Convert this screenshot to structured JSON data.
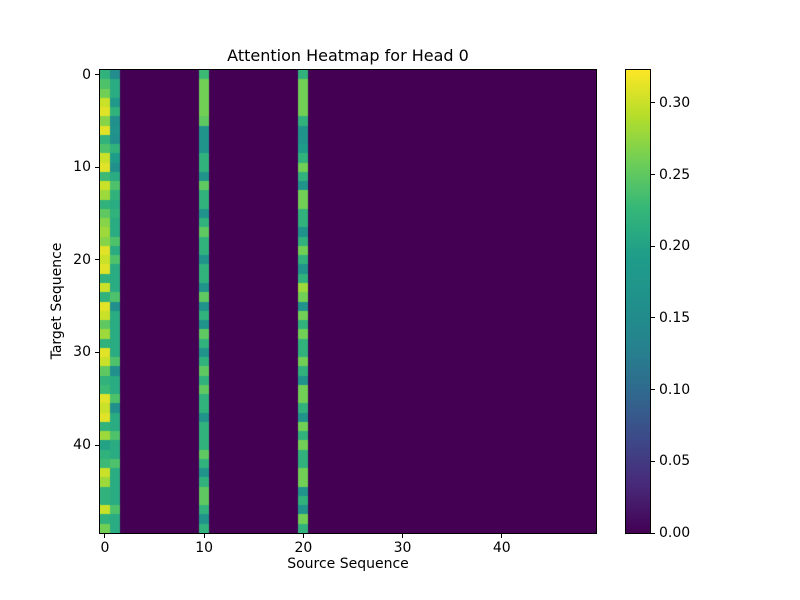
{
  "figure": {
    "background": "#ffffff",
    "spine_color": "#000000"
  },
  "chart_data": {
    "type": "heatmap",
    "title": "Attention Heatmap for Head 0",
    "xlabel": "Source Sequence",
    "ylabel": "Target Sequence",
    "n_rows": 50,
    "n_cols": 50,
    "colormap": "viridis",
    "colormap_stops": [
      "#440154",
      "#482878",
      "#3e4989",
      "#31688e",
      "#26828e",
      "#21918c",
      "#1f9e89",
      "#35b779",
      "#6ece58",
      "#b5de2b",
      "#fde725"
    ],
    "vmin": 0.0,
    "vmax": 0.323,
    "xticks": [
      0,
      10,
      20,
      30,
      40
    ],
    "yticks": [
      0,
      10,
      20,
      30,
      40
    ],
    "colorbar_ticks": [
      {
        "value": 0.0,
        "label": "0.00"
      },
      {
        "value": 0.05,
        "label": "0.05"
      },
      {
        "value": 0.1,
        "label": "0.10"
      },
      {
        "value": 0.15,
        "label": "0.15"
      },
      {
        "value": 0.2,
        "label": "0.20"
      },
      {
        "value": 0.25,
        "label": "0.25"
      },
      {
        "value": 0.3,
        "label": "0.30"
      }
    ],
    "background_value": 0.0,
    "note": "All columns are 0.0 except source columns 0, 1, 10 and 20, which carry per-target-row attention weights listed below.",
    "active_columns": {
      "0": [
        0.22,
        0.24,
        0.26,
        0.3,
        0.31,
        0.27,
        0.31,
        0.22,
        0.24,
        0.3,
        0.31,
        0.23,
        0.3,
        0.28,
        0.22,
        0.25,
        0.27,
        0.28,
        0.27,
        0.31,
        0.3,
        0.31,
        0.22,
        0.3,
        0.22,
        0.31,
        0.3,
        0.25,
        0.28,
        0.22,
        0.31,
        0.3,
        0.25,
        0.22,
        0.23,
        0.31,
        0.3,
        0.31,
        0.22,
        0.28,
        0.2,
        0.22,
        0.23,
        0.3,
        0.28,
        0.22,
        0.22,
        0.3,
        0.22,
        0.26
      ],
      "1": [
        0.15,
        0.21,
        0.21,
        0.18,
        0.22,
        0.16,
        0.17,
        0.16,
        0.22,
        0.19,
        0.16,
        0.21,
        0.24,
        0.22,
        0.21,
        0.22,
        0.21,
        0.21,
        0.24,
        0.21,
        0.24,
        0.21,
        0.21,
        0.21,
        0.24,
        0.16,
        0.21,
        0.21,
        0.21,
        0.21,
        0.21,
        0.24,
        0.16,
        0.21,
        0.21,
        0.24,
        0.16,
        0.21,
        0.21,
        0.24,
        0.21,
        0.21,
        0.24,
        0.21,
        0.21,
        0.21,
        0.21,
        0.24,
        0.21,
        0.21
      ],
      "10": [
        0.23,
        0.26,
        0.26,
        0.26,
        0.26,
        0.25,
        0.17,
        0.17,
        0.17,
        0.22,
        0.22,
        0.17,
        0.25,
        0.22,
        0.22,
        0.17,
        0.22,
        0.25,
        0.22,
        0.22,
        0.17,
        0.22,
        0.22,
        0.17,
        0.25,
        0.17,
        0.22,
        0.17,
        0.25,
        0.22,
        0.17,
        0.22,
        0.25,
        0.22,
        0.25,
        0.22,
        0.22,
        0.17,
        0.22,
        0.22,
        0.22,
        0.25,
        0.22,
        0.17,
        0.22,
        0.25,
        0.25,
        0.22,
        0.17,
        0.22
      ],
      "20": [
        0.22,
        0.26,
        0.26,
        0.26,
        0.26,
        0.22,
        0.17,
        0.17,
        0.19,
        0.22,
        0.26,
        0.22,
        0.17,
        0.26,
        0.26,
        0.22,
        0.22,
        0.17,
        0.22,
        0.26,
        0.22,
        0.17,
        0.22,
        0.28,
        0.26,
        0.17,
        0.26,
        0.22,
        0.26,
        0.22,
        0.22,
        0.26,
        0.22,
        0.17,
        0.26,
        0.26,
        0.22,
        0.17,
        0.26,
        0.22,
        0.26,
        0.22,
        0.22,
        0.26,
        0.26,
        0.17,
        0.22,
        0.17,
        0.26,
        0.22
      ]
    }
  }
}
